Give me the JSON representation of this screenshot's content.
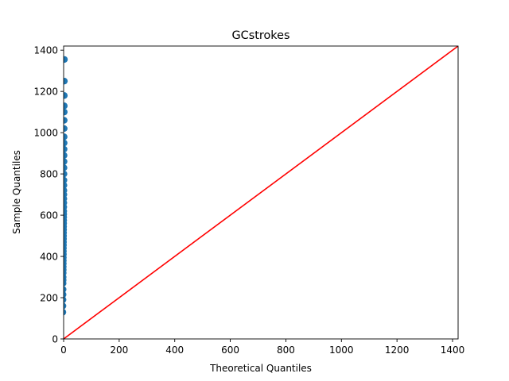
{
  "chart_data": {
    "type": "scatter",
    "title": "GCstrokes",
    "xlabel": "Theoretical Quantiles",
    "ylabel": "Sample Quantiles",
    "xlim": [
      0,
      1420
    ],
    "ylim": [
      0,
      1420
    ],
    "x_ticks": [
      0,
      200,
      400,
      600,
      800,
      1000,
      1200,
      1400
    ],
    "y_ticks": [
      0,
      200,
      400,
      600,
      800,
      1000,
      1200,
      1400
    ],
    "grid": false,
    "legend": "none",
    "colors": {
      "points": "#1f77b4",
      "reference_line": "#ff0000"
    },
    "reference_line": {
      "from": [
        0,
        0
      ],
      "to": [
        1420,
        1420
      ]
    },
    "series": [
      {
        "x": [
          -2.7,
          -2.4,
          -2.2,
          -2.0,
          -1.9,
          -1.8,
          -1.7,
          -1.6,
          -1.5,
          -1.4,
          -1.3,
          -1.2,
          -1.1,
          -1.0,
          -0.9,
          -0.8,
          -0.7,
          -0.6,
          -0.5,
          -0.4,
          -0.3,
          -0.2,
          -0.1,
          0.0,
          0.1,
          0.2,
          0.3,
          0.4,
          0.5,
          0.6,
          0.7,
          0.8,
          0.9,
          1.0,
          1.1,
          1.2,
          1.3,
          1.4,
          1.5,
          1.6,
          1.7,
          1.8,
          1.9,
          2.0,
          2.1,
          2.2,
          2.4,
          2.5,
          2.7,
          2.9
        ],
        "y": [
          130,
          160,
          190,
          215,
          240,
          270,
          285,
          300,
          320,
          335,
          350,
          365,
          380,
          395,
          410,
          425,
          440,
          455,
          470,
          485,
          500,
          515,
          530,
          545,
          560,
          575,
          590,
          605,
          620,
          640,
          660,
          680,
          700,
          720,
          745,
          770,
          800,
          830,
          860,
          890,
          920,
          950,
          980,
          1020,
          1060,
          1100,
          1130,
          1180,
          1250,
          1355
        ]
      }
    ]
  }
}
